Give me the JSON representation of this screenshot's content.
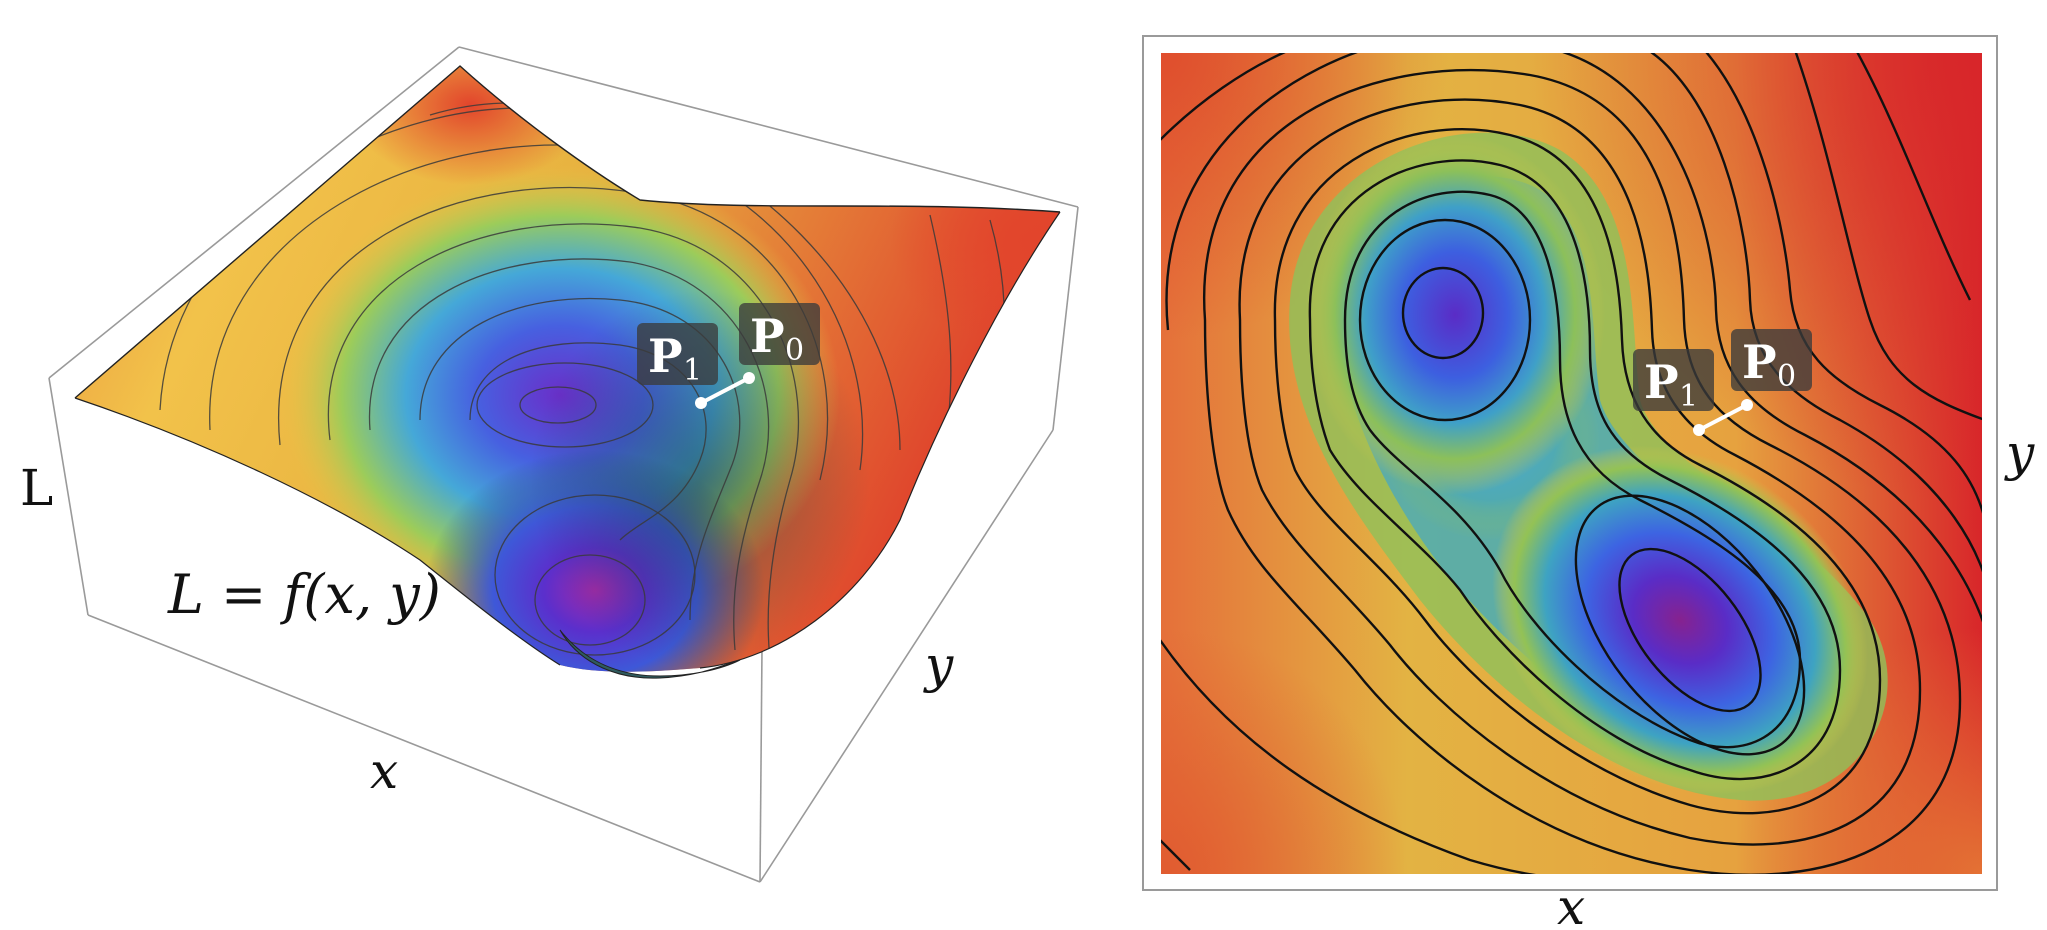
{
  "surface_plot": {
    "equation": "L = f(x, y)",
    "axis_label_vertical": "L",
    "axis_label_x": "x",
    "axis_label_y": "y",
    "point_labels": [
      {
        "main": "P",
        "sub": "1"
      },
      {
        "main": "P",
        "sub": "0"
      }
    ]
  },
  "contour_plot": {
    "axis_label_x": "x",
    "axis_label_y": "y",
    "point_labels": [
      {
        "main": "P",
        "sub": "1"
      },
      {
        "main": "P",
        "sub": "0"
      }
    ]
  },
  "colors": {
    "high": "#d8262a",
    "mid_high": "#e6883a",
    "mid": "#e7c23f",
    "mid_low": "#9cc04a",
    "low_mid": "#39a6b0",
    "low": "#3b5fe0",
    "minimum": "#7a1f9a",
    "tag_background": "#3b3b3b",
    "marker": "#ffffff"
  }
}
